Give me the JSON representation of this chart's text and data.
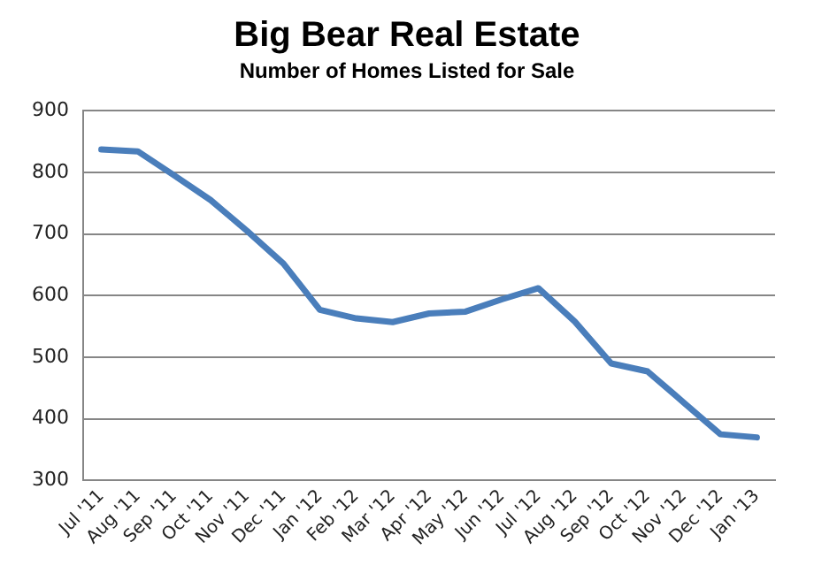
{
  "chart_data": {
    "type": "line",
    "title": "Big Bear Real Estate",
    "subtitle": "Number of Homes Listed for Sale",
    "categories": [
      "Jul '11",
      "Aug '11",
      "Sep '11",
      "Oct '11",
      "Nov '11",
      "Dec '11",
      "Jan '12",
      "Feb '12",
      "Mar '12",
      "Apr '12",
      "May '12",
      "Jun '12",
      "Jul '12",
      "Aug '12",
      "Sep '12",
      "Oct '12",
      "Nov '12",
      "Dec '12",
      "Jan '13"
    ],
    "series": [
      {
        "color": "#4a7ebb",
        "values": [
          837,
          834,
          795,
          755,
          705,
          652,
          577,
          563,
          557,
          571,
          574,
          594,
          612,
          558,
          490,
          477,
          426,
          375,
          370
        ]
      }
    ],
    "ylim": [
      300,
      900
    ],
    "yticks": [
      300,
      400,
      500,
      600,
      700,
      800,
      900
    ],
    "grid": "y",
    "legend": false,
    "marker": "none",
    "line_style": "solid"
  }
}
